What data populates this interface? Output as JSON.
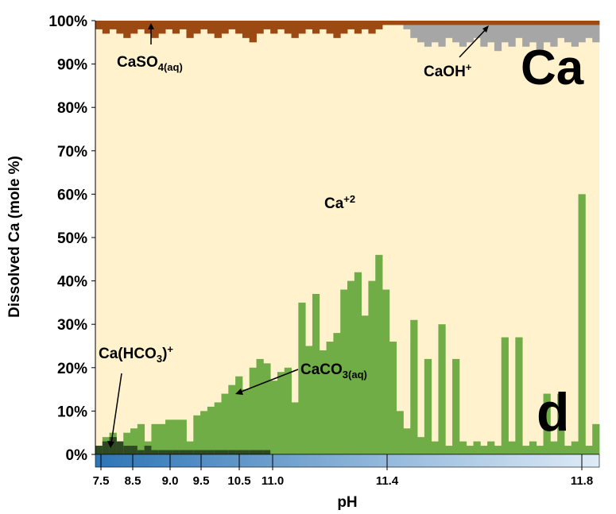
{
  "chart_data": {
    "type": "bar",
    "stacked": true,
    "element_label": "Ca",
    "panel_label": "d",
    "xlabel": "pH",
    "ylabel": "Dissolved Ca (mole %)",
    "ylim": [
      0,
      100
    ],
    "y_ticks": [
      "0%",
      "10%",
      "20%",
      "30%",
      "40%",
      "50%",
      "60%",
      "70%",
      "80%",
      "90%",
      "100%"
    ],
    "x_ticks": [
      "7.5",
      "8.5",
      "9.0",
      "9.5",
      "10.5",
      "11.0",
      "11.4",
      "11.8"
    ],
    "species_order": [
      "Ca(HCO3)+",
      "CaCO3(aq)",
      "Ca+2",
      "CaOH+",
      "CaSO4(aq)"
    ],
    "colors": {
      "Ca(HCO3)+": "#2e4a22",
      "CaCO3(aq)": "#70ad47",
      "Ca+2": "#fff2cc",
      "CaOH+": "#a6a6a6",
      "CaSO4(aq)": "#9c4a14",
      "ph_bar_start": "#2e75b6",
      "ph_bar_end": "#deebf7"
    },
    "annotations": {
      "caso4": "CaSO4(aq)",
      "caoh": "CaOH+",
      "ca2": "Ca+2",
      "cahco3": "Ca(HCO3)+",
      "caco3": "CaCO3(aq)"
    },
    "caco3_sample_values": [
      2,
      4,
      5,
      3,
      5,
      6,
      7,
      3,
      7,
      7,
      8,
      8,
      8,
      3,
      9,
      10,
      11,
      12,
      14,
      16,
      18,
      15,
      20,
      22,
      21,
      17,
      19,
      20,
      12,
      35,
      25,
      37,
      24,
      26,
      28,
      38,
      40,
      42,
      32,
      40,
      46,
      38,
      26,
      10,
      6,
      31,
      4,
      22,
      3,
      30,
      2,
      22,
      3,
      2,
      3,
      2,
      3,
      2,
      27,
      3,
      27,
      2,
      3,
      2,
      14,
      3,
      14,
      2,
      3,
      60,
      2,
      7
    ],
    "cahco3_sample_values": [
      2,
      3,
      4,
      3,
      2,
      2,
      1,
      2,
      1,
      1,
      1,
      1,
      1,
      1,
      1,
      1,
      1,
      1,
      1,
      1,
      1,
      1,
      1,
      1,
      1,
      0,
      0,
      0,
      0,
      0,
      0,
      0,
      0,
      0,
      0,
      0,
      0,
      0,
      0,
      0,
      0,
      0,
      0,
      0,
      0,
      0,
      0,
      0,
      0,
      0,
      0,
      0,
      0,
      0,
      0,
      0,
      0,
      0,
      0,
      0,
      0,
      0,
      0,
      0,
      0,
      0,
      0,
      0,
      0,
      0,
      0,
      0
    ],
    "caoh_sample_values": [
      0,
      0,
      0,
      0,
      0,
      0,
      0,
      0,
      0,
      0,
      0,
      0,
      0,
      0,
      0,
      0,
      0,
      0,
      0,
      0,
      0,
      0,
      0,
      0,
      0,
      0,
      0,
      0,
      0,
      0,
      0,
      0,
      0,
      0,
      0,
      0,
      0,
      0,
      0,
      0,
      0,
      0,
      0,
      0,
      1,
      3,
      4,
      5,
      4,
      5,
      3,
      4,
      5,
      4,
      3,
      5,
      4,
      6,
      4,
      5,
      3,
      5,
      4,
      6,
      4,
      5,
      3,
      4,
      5,
      4,
      3,
      4
    ],
    "caso4_sample_values": [
      2,
      3,
      2,
      3,
      4,
      3,
      2,
      3,
      4,
      3,
      2,
      3,
      2,
      4,
      3,
      2,
      3,
      4,
      3,
      2,
      3,
      4,
      5,
      3,
      2,
      3,
      2,
      3,
      4,
      3,
      2,
      3,
      2,
      3,
      4,
      3,
      2,
      3,
      2,
      3,
      2,
      1,
      1,
      1,
      1,
      1,
      1,
      1,
      1,
      1,
      1,
      1,
      1,
      1,
      1,
      1,
      1,
      1,
      1,
      1,
      1,
      1,
      1,
      1,
      1,
      1,
      1,
      1,
      1,
      1,
      1,
      1
    ]
  }
}
